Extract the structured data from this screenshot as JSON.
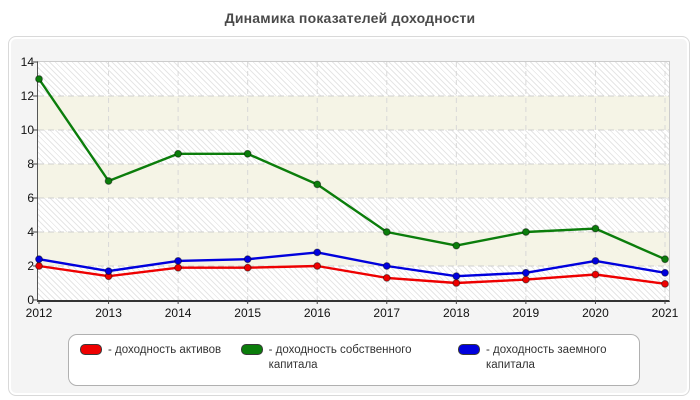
{
  "title": "Динамика показателей доходности",
  "chart_data": {
    "type": "line",
    "title": "Динамика показателей доходности",
    "x": [
      "2012",
      "2013",
      "2014",
      "2015",
      "2016",
      "2017",
      "2018",
      "2019",
      "2020",
      "2021"
    ],
    "xlabel": "",
    "ylabel": "",
    "ylim": [
      0,
      14
    ],
    "yticks": [
      0,
      2,
      4,
      6,
      8,
      10,
      12,
      14
    ],
    "grid": "dashed",
    "legend_position": "bottom",
    "series": [
      {
        "label": "- доходность активов",
        "color": "#ee0000",
        "values": [
          2.0,
          1.4,
          1.9,
          1.9,
          2.0,
          1.3,
          1.0,
          1.2,
          1.5,
          0.95
        ]
      },
      {
        "label": "- доходность собственного капитала",
        "color": "#0b7d0b",
        "values": [
          13.0,
          7.0,
          8.6,
          8.6,
          6.8,
          4.0,
          3.2,
          4.0,
          4.2,
          2.4
        ]
      },
      {
        "label": "- доходность заемного капитала",
        "color": "#0000dd",
        "values": [
          2.4,
          1.7,
          2.3,
          2.4,
          2.8,
          2.0,
          1.4,
          1.6,
          2.3,
          1.6
        ]
      }
    ]
  }
}
